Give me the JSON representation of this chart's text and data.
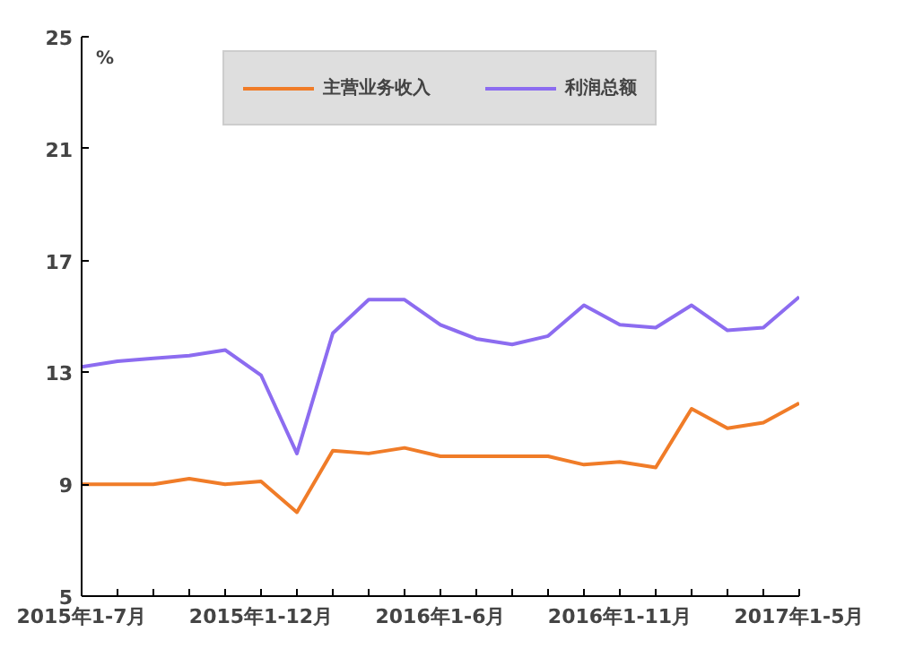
{
  "chart_data": {
    "type": "line",
    "ylabel": "%",
    "categories": [
      "2015年1-7月",
      null,
      null,
      null,
      null,
      "2015年1-12月",
      null,
      null,
      null,
      null,
      "2016年1-6月",
      null,
      null,
      null,
      null,
      "2016年1-11月",
      null,
      null,
      null,
      null,
      "2017年1-5月"
    ],
    "series": [
      {
        "name": "主营业务收入",
        "color": "#f07c28",
        "values": [
          9.0,
          9.0,
          9.0,
          9.2,
          9.0,
          9.1,
          8.0,
          10.2,
          10.1,
          10.3,
          10.0,
          10.0,
          10.0,
          10.0,
          9.7,
          9.8,
          9.6,
          11.7,
          11.0,
          11.2,
          11.9
        ]
      },
      {
        "name": "利润总额",
        "color": "#8c6cf0",
        "values": [
          13.2,
          13.4,
          13.5,
          13.6,
          13.8,
          12.9,
          10.1,
          14.4,
          15.6,
          15.6,
          14.7,
          14.2,
          14.0,
          14.3,
          15.4,
          14.7,
          14.6,
          15.4,
          14.5,
          14.6,
          15.7
        ]
      }
    ],
    "ylim": [
      5,
      25
    ],
    "yticks": [
      5,
      9,
      13,
      17,
      21,
      25
    ],
    "grid": false,
    "legend": "top",
    "marker": "none",
    "line_style": "solid"
  }
}
